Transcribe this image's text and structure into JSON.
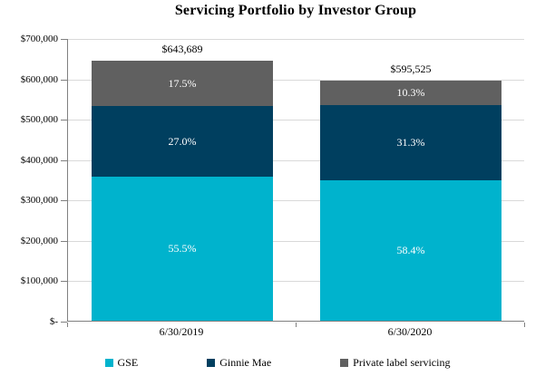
{
  "chart_data": {
    "type": "bar",
    "stacked": true,
    "title": "Servicing Portfolio by Investor Group",
    "categories": [
      "6/30/2019",
      "6/30/2020"
    ],
    "totals": [
      643689,
      595525
    ],
    "total_labels": [
      "$643,689",
      "$595,525"
    ],
    "series": [
      {
        "name": "GSE",
        "color": "#00B3CD",
        "pct": [
          55.5,
          58.4
        ],
        "pct_labels": [
          "55.5%",
          "58.4%"
        ]
      },
      {
        "name": "Ginnie Mae",
        "color": "#003F5F",
        "pct": [
          27.0,
          31.3
        ],
        "pct_labels": [
          "27.0%",
          "31.3%"
        ]
      },
      {
        "name": "Private label servicing",
        "color": "#606060",
        "pct": [
          17.5,
          10.3
        ],
        "pct_labels": [
          "17.5%",
          "10.3%"
        ]
      }
    ],
    "ylim": [
      0,
      700000
    ],
    "ytick_step": 100000,
    "ytick_labels": [
      "$-",
      "$100,000",
      "$200,000",
      "$300,000",
      "$400,000",
      "$500,000",
      "$600,000",
      "$700,000"
    ],
    "grid": true,
    "gridline_color": "#D9D9D9",
    "axis_color": "#808080",
    "text_color": "#000000",
    "pct_label_color": "#FFFFFF",
    "legend_position": "bottom"
  }
}
